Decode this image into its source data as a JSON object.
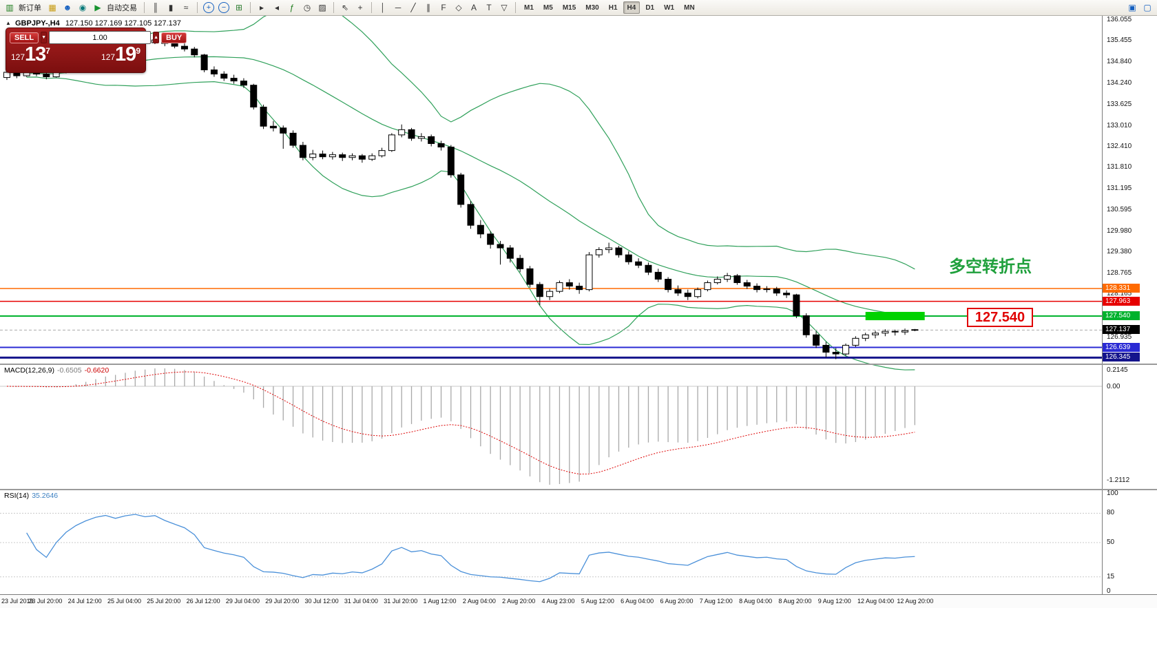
{
  "toolbar": {
    "active_timeframe": "H4",
    "items": [
      {
        "name": "new-order-icon",
        "glyph": "▥",
        "color": "#1a7a1a"
      },
      {
        "name": "new-order-label",
        "text": "新订单"
      },
      {
        "name": "history-center-icon",
        "glyph": "▦",
        "color": "#c79b10"
      },
      {
        "name": "profile-icon",
        "glyph": "☻",
        "color": "#1560c0"
      },
      {
        "name": "market-watch-icon",
        "glyph": "◉",
        "color": "#0a7a7a"
      },
      {
        "name": "autotrading-icon",
        "glyph": "▶",
        "color": "#18932f"
      },
      {
        "name": "autotrading-label",
        "text": "自动交易"
      },
      {
        "sep": true
      },
      {
        "name": "bar-chart-icon",
        "glyph": "║",
        "color": "#333333"
      },
      {
        "name": "candlestick-icon",
        "glyph": "▮",
        "color": "#333333"
      },
      {
        "name": "line-chart-icon",
        "glyph": "≈",
        "color": "#333333"
      },
      {
        "sep": true
      },
      {
        "name": "zoom-in-icon",
        "glyph": "+",
        "color": "#1560c0",
        "circle": true
      },
      {
        "name": "zoom-out-icon",
        "glyph": "−",
        "color": "#1560c0",
        "circle": true
      },
      {
        "name": "tile-windows-icon",
        "glyph": "⊞",
        "color": "#2e7d32"
      },
      {
        "sep": true
      },
      {
        "name": "auto-scroll-icon",
        "glyph": "▸",
        "color": "#333333"
      },
      {
        "name": "chart-shift-icon",
        "glyph": "◂",
        "color": "#333333"
      },
      {
        "name": "indicators-icon",
        "glyph": "ƒ",
        "color": "#1a7a1a"
      },
      {
        "name": "periods-icon",
        "glyph": "◷",
        "color": "#333333"
      },
      {
        "name": "templates-icon",
        "glyph": "▨",
        "color": "#333333"
      },
      {
        "sep": true
      },
      {
        "name": "cursor-icon",
        "glyph": "⇖",
        "color": "#333333"
      },
      {
        "name": "crosshair-icon",
        "glyph": "+",
        "color": "#333333"
      },
      {
        "sep": true
      },
      {
        "name": "vertical-line-icon",
        "glyph": "│",
        "color": "#333333"
      },
      {
        "name": "horizontal-line-icon",
        "glyph": "─",
        "color": "#333333"
      },
      {
        "name": "trendline-icon",
        "glyph": "╱",
        "color": "#333333"
      },
      {
        "name": "equidistant-channel-icon",
        "glyph": "∥",
        "color": "#333333"
      },
      {
        "name": "fibonacci-icon",
        "glyph": "F",
        "color": "#333333"
      },
      {
        "name": "shapes-icon",
        "glyph": "◇",
        "color": "#333333"
      },
      {
        "name": "text-icon",
        "glyph": "A",
        "color": "#333333"
      },
      {
        "name": "text-label-icon",
        "glyph": "T",
        "color": "#333333"
      },
      {
        "name": "arrows-icon",
        "glyph": "▽",
        "color": "#333333"
      },
      {
        "sep": true
      },
      {
        "tf": "M1"
      },
      {
        "tf": "M5"
      },
      {
        "tf": "M15"
      },
      {
        "tf": "M30"
      },
      {
        "tf": "H1"
      },
      {
        "tf": "H4"
      },
      {
        "tf": "D1"
      },
      {
        "tf": "W1"
      },
      {
        "tf": "MN"
      },
      {
        "spring": true
      },
      {
        "name": "new-chart-icon",
        "glyph": "▣",
        "color": "#1560c0"
      },
      {
        "name": "window-layout-icon",
        "glyph": "▢",
        "color": "#1560c0"
      }
    ]
  },
  "chart": {
    "symbol_label": "GBPJPY-,H4",
    "ohlc": "127.150 127.169 127.105 127.137"
  },
  "trade_panel": {
    "sell_label": "SELL",
    "buy_label": "BUY",
    "volume": "1.00",
    "sell_prefix": "127",
    "sell_big": "13",
    "sell_sup": "7",
    "buy_prefix": "127",
    "buy_big": "19",
    "buy_sup": "9"
  },
  "indicator_labels": {
    "macd_name": "MACD(12,26,9)",
    "macd_value": "-0.6505",
    "macd_signal": "-0.6620",
    "rsi_name": "RSI(14)",
    "rsi_value": "35.2646"
  },
  "annotations": {
    "turning_point_text": "多空转折点",
    "price_tag": "127.540"
  },
  "chart_data": {
    "type": "candlestick",
    "symbol": "GBPJPY",
    "timeframe": "H4",
    "y_axis_range": [
      126.17,
      136.17
    ],
    "grid": false,
    "price_scale_ticks": [
      "136.055",
      "135.455",
      "134.840",
      "134.240",
      "133.625",
      "133.010",
      "132.410",
      "131.810",
      "131.195",
      "130.595",
      "129.980",
      "129.380",
      "128.765",
      "128.165",
      "126.935"
    ],
    "levels": [
      {
        "value": 128.331,
        "label": "128.331",
        "color": "#FF6A00",
        "width": 1.5
      },
      {
        "value": 127.963,
        "label": "127.963",
        "color": "#E60000",
        "width": 1.5
      },
      {
        "value": 127.54,
        "label": "127.540",
        "color": "#00B22D",
        "width": 2
      },
      {
        "value": 126.639,
        "label": "126.639",
        "color": "#2A2AD4",
        "width": 2
      },
      {
        "value": 126.345,
        "label": "126.345",
        "color": "#14148C",
        "width": 3
      }
    ],
    "current_price": {
      "value": 127.137,
      "label": "127.137"
    },
    "highlight_rect": {
      "from_candle": 87,
      "to_candle": 93,
      "price_top": 127.66,
      "price_bottom": 127.42,
      "color": "#00D200"
    },
    "x_labels": [
      "23 Jul 2019",
      "23 Jul 20:00",
      "24 Jul 12:00",
      "25 Jul 04:00",
      "25 Jul 20:00",
      "26 Jul 12:00",
      "29 Jul 04:00",
      "29 Jul 20:00",
      "30 Jul 12:00",
      "31 Jul 04:00",
      "31 Jul 20:00",
      "1 Aug 12:00",
      "2 Aug 04:00",
      "2 Aug 20:00",
      "4 Aug 23:00",
      "5 Aug 12:00",
      "6 Aug 04:00",
      "6 Aug 20:00",
      "7 Aug 12:00",
      "8 Aug 04:00",
      "8 Aug 20:00",
      "9 Aug 12:00",
      "12 Aug 04:00",
      "12 Aug 20:00"
    ],
    "x_label_every_n_candles": 4,
    "bollinger": {
      "period": 20,
      "deviation": 2,
      "color": "#2FA05A"
    },
    "macd": {
      "fast": 12,
      "slow": 26,
      "signal": 9,
      "scale_labels": [
        "0.2145",
        "0.00",
        "-1.2112"
      ],
      "histogram_color": "#A8A8A8",
      "signal_color": "#DD0000"
    },
    "rsi": {
      "period": 14,
      "scale_labels": [
        "100",
        "80",
        "50",
        "15",
        "0"
      ],
      "levels": [
        80,
        50,
        15
      ],
      "color": "#4A90D9"
    },
    "candles": [
      [
        134.4,
        134.62,
        134.33,
        134.55
      ],
      [
        134.55,
        134.6,
        134.38,
        134.45
      ],
      [
        134.45,
        134.66,
        134.42,
        134.6
      ],
      [
        134.6,
        134.65,
        134.44,
        134.5
      ],
      [
        134.5,
        134.56,
        134.35,
        134.42
      ],
      [
        134.42,
        134.6,
        134.4,
        134.55
      ],
      [
        134.55,
        134.75,
        134.52,
        134.7
      ],
      [
        134.7,
        134.9,
        134.66,
        134.85
      ],
      [
        134.85,
        135.05,
        134.82,
        135.0
      ],
      [
        135.0,
        135.2,
        134.96,
        135.15
      ],
      [
        135.15,
        135.3,
        135.1,
        135.25
      ],
      [
        135.25,
        135.32,
        135.12,
        135.2
      ],
      [
        135.2,
        135.4,
        135.16,
        135.35
      ],
      [
        135.35,
        135.52,
        135.3,
        135.45
      ],
      [
        135.45,
        135.56,
        135.35,
        135.4
      ],
      [
        135.4,
        135.55,
        135.36,
        135.48
      ],
      [
        135.48,
        135.53,
        135.3,
        135.38
      ],
      [
        135.38,
        135.46,
        135.24,
        135.3
      ],
      [
        135.3,
        135.38,
        135.15,
        135.22
      ],
      [
        135.22,
        135.28,
        134.98,
        135.05
      ],
      [
        135.05,
        135.08,
        134.55,
        134.62
      ],
      [
        134.62,
        134.72,
        134.42,
        134.5
      ],
      [
        134.5,
        134.58,
        134.3,
        134.38
      ],
      [
        134.38,
        134.48,
        134.22,
        134.3
      ],
      [
        134.3,
        134.38,
        134.1,
        134.18
      ],
      [
        134.18,
        134.22,
        133.48,
        133.55
      ],
      [
        133.55,
        133.62,
        132.92,
        133.0
      ],
      [
        133.0,
        133.15,
        132.85,
        132.95
      ],
      [
        132.95,
        133.02,
        132.35,
        132.8
      ],
      [
        132.8,
        132.88,
        132.38,
        132.45
      ],
      [
        132.45,
        132.55,
        132.02,
        132.1
      ],
      [
        132.1,
        132.32,
        132.02,
        132.2
      ],
      [
        132.2,
        132.3,
        132.05,
        132.12
      ],
      [
        132.12,
        132.26,
        132.04,
        132.18
      ],
      [
        132.18,
        132.24,
        132.0,
        132.1
      ],
      [
        132.1,
        132.22,
        132.02,
        132.15
      ],
      [
        132.15,
        132.2,
        131.95,
        132.05
      ],
      [
        132.05,
        132.22,
        132.0,
        132.15
      ],
      [
        132.15,
        132.38,
        132.1,
        132.3
      ],
      [
        132.3,
        132.8,
        132.26,
        132.75
      ],
      [
        132.75,
        133.05,
        132.68,
        132.9
      ],
      [
        132.9,
        132.95,
        132.58,
        132.65
      ],
      [
        132.65,
        132.8,
        132.56,
        132.7
      ],
      [
        132.7,
        132.76,
        132.42,
        132.5
      ],
      [
        132.5,
        132.58,
        132.3,
        132.4
      ],
      [
        132.4,
        132.46,
        131.52,
        131.6
      ],
      [
        131.6,
        131.66,
        130.66,
        130.75
      ],
      [
        130.75,
        130.85,
        130.05,
        130.15
      ],
      [
        130.15,
        130.3,
        129.78,
        129.9
      ],
      [
        129.9,
        129.98,
        129.48,
        129.6
      ],
      [
        129.6,
        129.7,
        129.02,
        129.5
      ],
      [
        129.5,
        129.58,
        129.08,
        129.2
      ],
      [
        129.2,
        129.3,
        128.8,
        128.9
      ],
      [
        128.9,
        128.98,
        128.36,
        128.45
      ],
      [
        128.45,
        128.52,
        127.85,
        128.1
      ],
      [
        128.1,
        128.32,
        128.0,
        128.25
      ],
      [
        128.25,
        128.56,
        128.2,
        128.5
      ],
      [
        128.5,
        128.6,
        128.3,
        128.4
      ],
      [
        128.4,
        128.5,
        128.18,
        128.3
      ],
      [
        128.3,
        129.38,
        128.25,
        129.3
      ],
      [
        129.3,
        129.52,
        129.22,
        129.45
      ],
      [
        129.45,
        129.65,
        129.35,
        129.5
      ],
      [
        129.5,
        129.56,
        129.22,
        129.3
      ],
      [
        129.3,
        129.4,
        129.02,
        129.1
      ],
      [
        129.1,
        129.2,
        128.92,
        129.0
      ],
      [
        129.0,
        129.08,
        128.72,
        128.8
      ],
      [
        128.8,
        128.9,
        128.52,
        128.6
      ],
      [
        128.6,
        128.66,
        128.22,
        128.3
      ],
      [
        128.3,
        128.42,
        128.12,
        128.2
      ],
      [
        128.2,
        128.3,
        128.0,
        128.1
      ],
      [
        128.1,
        128.36,
        128.05,
        128.3
      ],
      [
        128.3,
        128.56,
        128.25,
        128.5
      ],
      [
        128.5,
        128.68,
        128.45,
        128.6
      ],
      [
        128.6,
        128.78,
        128.52,
        128.7
      ],
      [
        128.7,
        128.75,
        128.44,
        128.5
      ],
      [
        128.5,
        128.58,
        128.32,
        128.4
      ],
      [
        128.4,
        128.48,
        128.22,
        128.3
      ],
      [
        128.3,
        128.4,
        128.22,
        128.32
      ],
      [
        128.32,
        128.38,
        128.12,
        128.2
      ],
      [
        128.2,
        128.28,
        128.06,
        128.15
      ],
      [
        128.15,
        128.18,
        127.48,
        127.55
      ],
      [
        127.55,
        127.62,
        126.92,
        127.0
      ],
      [
        127.0,
        127.1,
        126.62,
        126.7
      ],
      [
        126.7,
        126.8,
        126.35,
        126.5
      ],
      [
        126.5,
        126.62,
        126.3,
        126.45
      ],
      [
        126.45,
        126.75,
        126.4,
        126.7
      ],
      [
        126.7,
        126.96,
        126.65,
        126.9
      ],
      [
        126.9,
        127.06,
        126.82,
        127.0
      ],
      [
        127.0,
        127.12,
        126.9,
        127.05
      ],
      [
        127.05,
        127.16,
        126.96,
        127.1
      ],
      [
        127.1,
        127.15,
        126.98,
        127.08
      ],
      [
        127.08,
        127.18,
        127.0,
        127.12
      ],
      [
        127.15,
        127.169,
        127.105,
        127.137
      ]
    ]
  }
}
